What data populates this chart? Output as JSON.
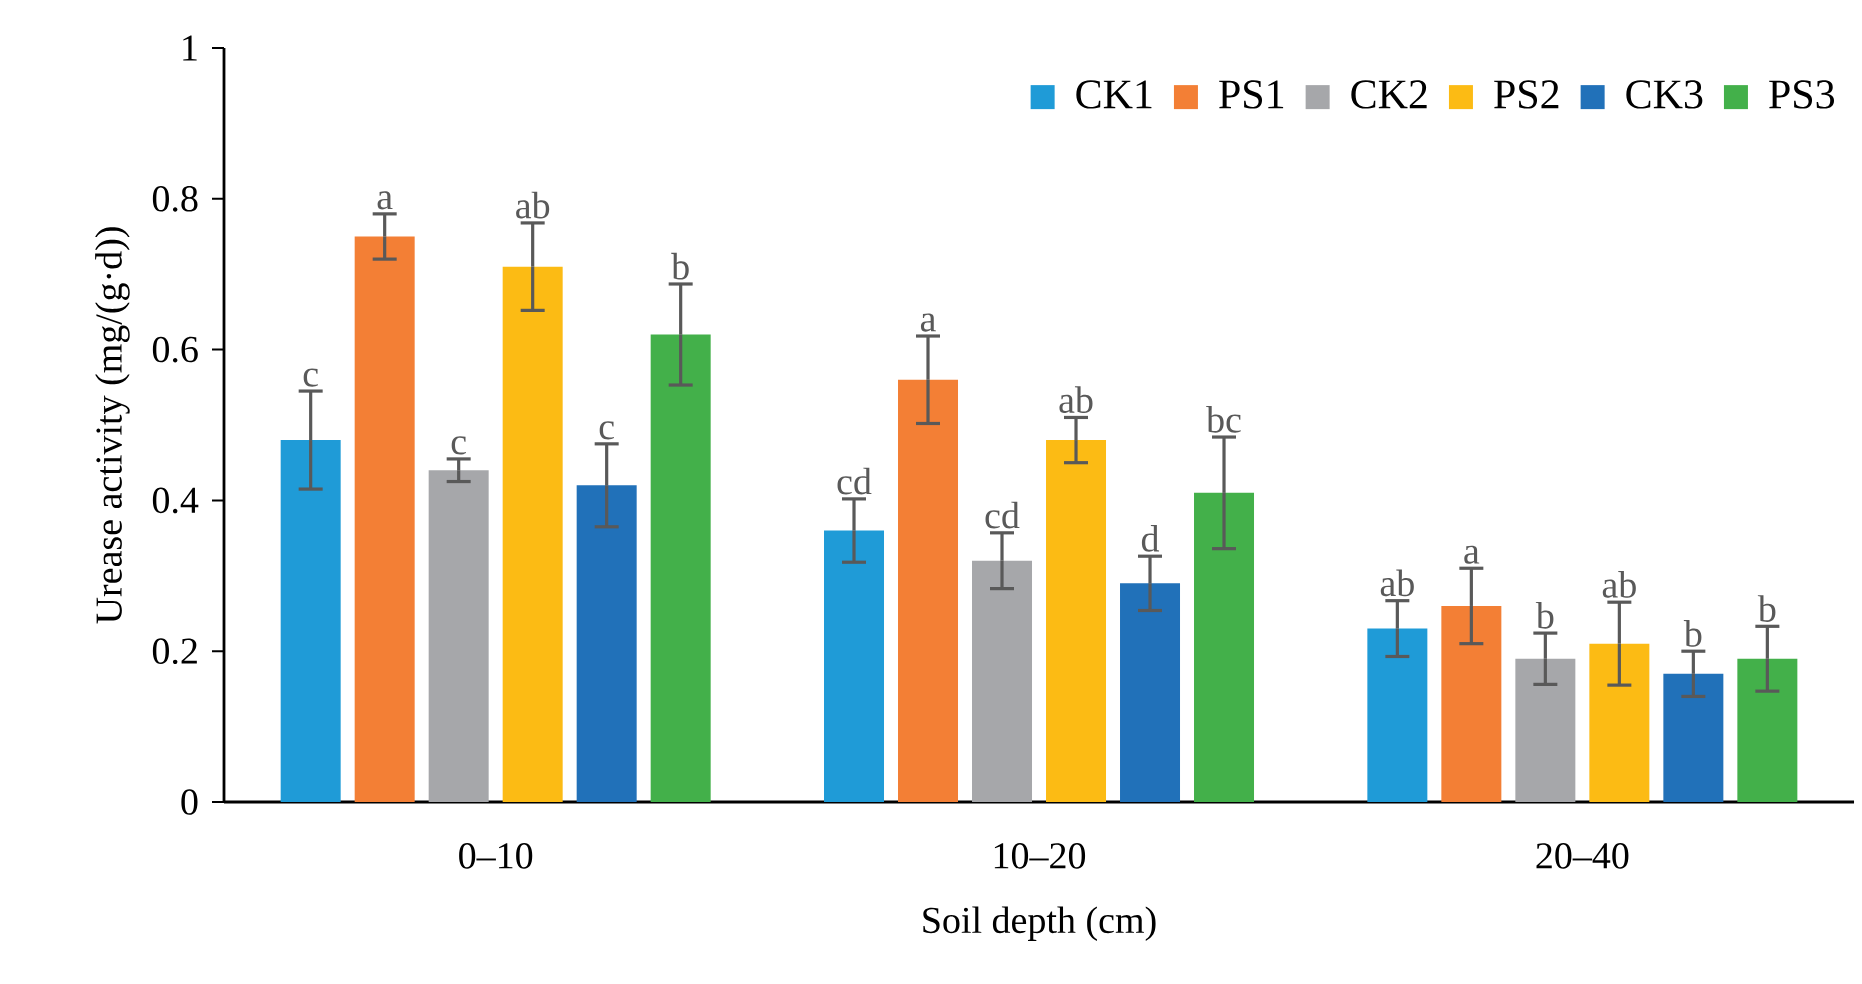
{
  "chart_data": {
    "type": "bar",
    "xlabel": "Soil depth (cm)",
    "ylabel": "Urease activity (mg/(g·d))",
    "categories": [
      "0–10",
      "10–20",
      "20–40"
    ],
    "series": [
      {
        "name": "CK1",
        "color": "#1f9bd7",
        "values": [
          0.48,
          0.36,
          0.23
        ],
        "errors": [
          0.065,
          0.042,
          0.037
        ],
        "value_labels": [
          "c",
          "cd",
          "ab"
        ]
      },
      {
        "name": "PS1",
        "color": "#f37f35",
        "values": [
          0.75,
          0.56,
          0.26
        ],
        "errors": [
          0.03,
          0.058,
          0.05
        ],
        "value_labels": [
          "a",
          "a",
          "a"
        ]
      },
      {
        "name": "CK2",
        "color": "#a6a7aa",
        "values": [
          0.44,
          0.32,
          0.19
        ],
        "errors": [
          0.015,
          0.037,
          0.034
        ],
        "value_labels": [
          "c",
          "cd",
          "b"
        ]
      },
      {
        "name": "PS2",
        "color": "#fcbb14",
        "values": [
          0.71,
          0.48,
          0.21
        ],
        "errors": [
          0.058,
          0.03,
          0.055
        ],
        "value_labels": [
          "ab",
          "ab",
          "ab"
        ]
      },
      {
        "name": "CK3",
        "color": "#2171b9",
        "values": [
          0.42,
          0.29,
          0.17
        ],
        "errors": [
          0.055,
          0.036,
          0.03
        ],
        "value_labels": [
          "c",
          "d",
          "b"
        ]
      },
      {
        "name": "PS3",
        "color": "#43b04a",
        "values": [
          0.62,
          0.41,
          0.19
        ],
        "errors": [
          0.067,
          0.074,
          0.043
        ],
        "value_labels": [
          "b",
          "bc",
          "b"
        ]
      }
    ],
    "ylim": [
      0,
      1
    ],
    "yticks": [
      0,
      0.2,
      0.4,
      0.6,
      0.8,
      1
    ],
    "legend": "top right",
    "grid": false
  }
}
